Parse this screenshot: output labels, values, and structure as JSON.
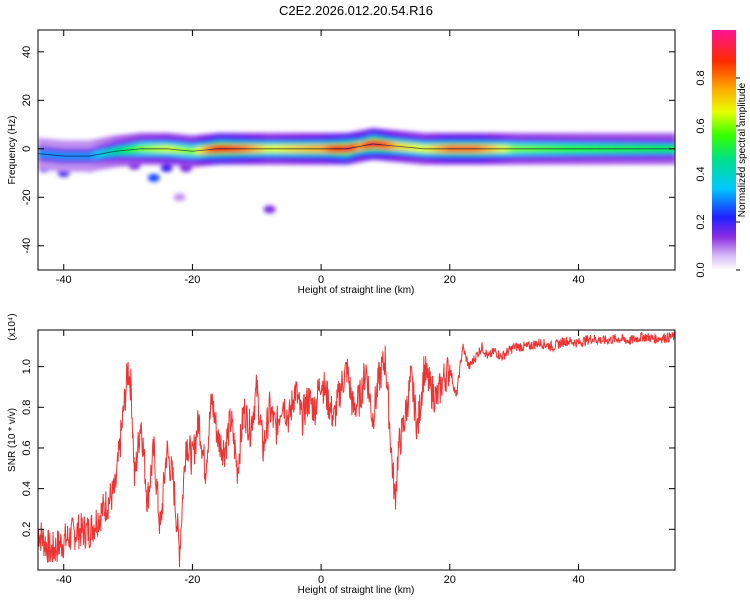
{
  "title": "C2E2.2026.012.20.54.R16",
  "chart_data": [
    {
      "type": "heatmap",
      "xlabel": "Height of straight line (km)",
      "ylabel": "Frequency (Hz)",
      "xlim": [
        -44,
        55
      ],
      "ylim": [
        -50,
        49
      ],
      "x_ticks": [
        -40,
        -20,
        0,
        20,
        40
      ],
      "y_ticks": [
        -40,
        -20,
        0,
        20,
        40
      ],
      "colorbar": {
        "label": "Normalized spectral amplitude",
        "range": [
          0,
          1
        ],
        "ticks": [
          "0.0",
          "0.2",
          "0.4",
          "0.6",
          "0.8"
        ],
        "colors": [
          "#ffffff",
          "#d5b8f5",
          "#8a2be2",
          "#2020ff",
          "#00c8ff",
          "#00e08a",
          "#33ff00",
          "#e8ff00",
          "#ffa500",
          "#ff2a00",
          "#ff1493"
        ]
      },
      "ridge": {
        "x": [
          -44,
          -40,
          -36,
          -32,
          -28,
          -24,
          -20,
          -16,
          -12,
          -8,
          -4,
          0,
          4,
          6,
          8,
          12,
          16,
          20,
          24,
          30,
          40,
          55
        ],
        "y": [
          -2,
          -3,
          -3,
          -1,
          0,
          0,
          -1,
          0,
          0,
          0,
          0,
          0,
          0,
          1,
          2,
          1,
          0,
          0,
          0,
          0,
          0,
          0
        ],
        "amplitude": [
          0.3,
          0.3,
          0.3,
          0.45,
          0.6,
          0.65,
          0.6,
          0.9,
          0.8,
          0.65,
          0.7,
          0.75,
          0.95,
          0.75,
          0.95,
          0.7,
          0.65,
          0.8,
          0.8,
          0.6,
          0.55,
          0.5
        ]
      },
      "blobs": [
        {
          "x": -43,
          "y": -8,
          "amplitude": 0.2
        },
        {
          "x": -40,
          "y": -10,
          "amplitude": 0.2
        },
        {
          "x": -36,
          "y": -8,
          "amplitude": 0.15
        },
        {
          "x": -29,
          "y": -7,
          "amplitude": 0.15
        },
        {
          "x": -26,
          "y": -12,
          "amplitude": 0.25
        },
        {
          "x": -24,
          "y": -8,
          "amplitude": 0.2
        },
        {
          "x": -21,
          "y": -8,
          "amplitude": 0.15
        },
        {
          "x": -8,
          "y": -25,
          "amplitude": 0.15
        },
        {
          "x": -22,
          "y": -20,
          "amplitude": 0.08
        }
      ]
    },
    {
      "type": "line",
      "xlabel": "Height of straight line (km)",
      "ylabel": "SNR (10 * v/v)",
      "y_multiplier": "(x10⁴)",
      "xlim": [
        -44,
        55
      ],
      "ylim": [
        0,
        1.18
      ],
      "x_ticks": [
        -40,
        -20,
        0,
        20,
        40
      ],
      "y_ticks": [
        "0.2",
        "0.4",
        "0.6",
        "0.8",
        "1.0"
      ],
      "color": "#ee3333",
      "series": [
        {
          "x": [
            -44,
            -42,
            -40,
            -38,
            -36,
            -34,
            -32,
            -31,
            -30,
            -29.5,
            -29,
            -28,
            -27,
            -26,
            -25,
            -24,
            -23,
            -22,
            -21,
            -20,
            -19,
            -18,
            -17,
            -16,
            -15,
            -14,
            -13,
            -12,
            -11,
            -10,
            -9,
            -8,
            -7,
            -6,
            -5,
            -4,
            -3,
            -2,
            -1,
            0,
            1,
            2,
            3,
            4,
            5,
            6,
            7,
            8,
            9,
            10,
            11,
            11.5,
            12,
            13,
            14,
            15,
            16,
            17,
            18,
            19,
            20,
            21,
            22,
            23,
            24,
            25,
            26,
            27,
            28,
            30,
            32,
            34,
            36,
            38,
            40,
            42,
            44,
            46,
            48,
            50,
            52,
            55
          ],
          "y": [
            0.2,
            0.1,
            0.15,
            0.2,
            0.2,
            0.3,
            0.4,
            0.7,
            1.0,
            0.9,
            0.45,
            0.75,
            0.35,
            0.6,
            0.2,
            0.6,
            0.45,
            0.1,
            0.65,
            0.55,
            0.75,
            0.5,
            0.85,
            0.65,
            0.6,
            0.75,
            0.5,
            0.8,
            0.7,
            0.9,
            0.6,
            0.8,
            0.7,
            0.85,
            0.75,
            0.9,
            0.75,
            0.85,
            0.8,
            0.95,
            0.85,
            0.75,
            0.9,
            1.0,
            0.8,
            0.85,
            1.0,
            0.75,
            0.95,
            1.05,
            0.55,
            0.35,
            0.6,
            0.75,
            0.95,
            0.7,
            1.0,
            0.9,
            0.85,
            0.95,
            1.0,
            0.85,
            1.1,
            1.0,
            1.05,
            1.1,
            1.05,
            1.08,
            1.05,
            1.1,
            1.1,
            1.12,
            1.1,
            1.13,
            1.12,
            1.14,
            1.13,
            1.14,
            1.13,
            1.15,
            1.14,
            1.15
          ]
        }
      ]
    }
  ]
}
